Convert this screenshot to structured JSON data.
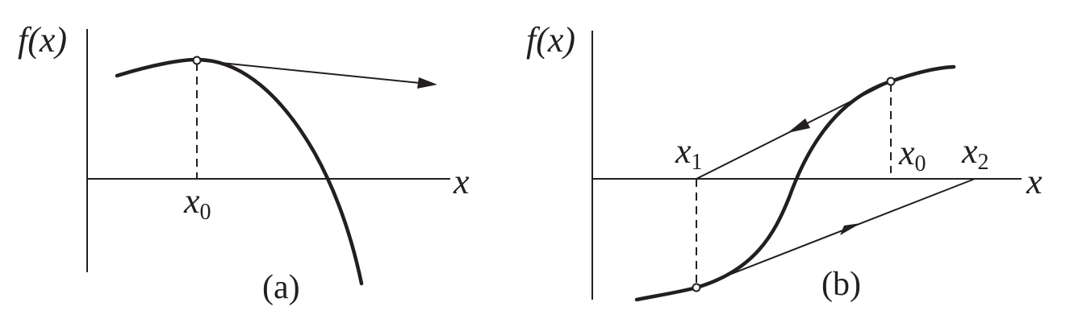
{
  "panel_a": {
    "y_label": "f(x)",
    "x_label": "x",
    "point_label": "x",
    "point_label_sub": "0",
    "caption": "(a)"
  },
  "panel_b": {
    "y_label": "f(x)",
    "x_label": "x",
    "labels": [
      {
        "main": "x",
        "sub": "1"
      },
      {
        "main": "x",
        "sub": "0"
      },
      {
        "main": "x",
        "sub": "2"
      }
    ],
    "caption": "(b)"
  },
  "colors": {
    "ink": "#231f20",
    "background": "#ffffff"
  }
}
